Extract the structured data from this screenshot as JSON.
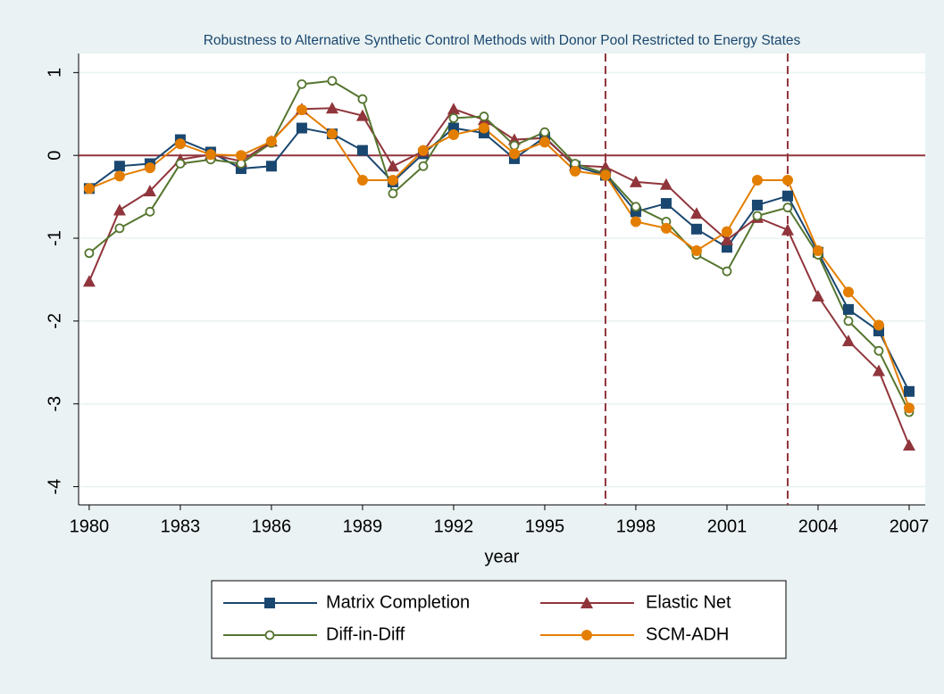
{
  "chart_data": {
    "type": "line",
    "title": "Robustness to Alternative Synthetic Control Methods with Donor Pool Restricted to Energy States",
    "x_label": "year",
    "x": [
      1980,
      1981,
      1982,
      1983,
      1984,
      1985,
      1986,
      1987,
      1988,
      1989,
      1990,
      1991,
      1992,
      1993,
      1994,
      1995,
      1996,
      1997,
      1998,
      1999,
      2000,
      2001,
      2002,
      2003,
      2004,
      2005,
      2006,
      2007
    ],
    "series": [
      {
        "name": "Matrix Completion",
        "color": "#1a476f",
        "marker": "square",
        "values": [
          -0.4,
          -0.13,
          -0.1,
          0.19,
          0.04,
          -0.16,
          -0.13,
          0.33,
          0.26,
          0.06,
          -0.32,
          0.02,
          0.33,
          0.27,
          -0.04,
          0.22,
          -0.13,
          -0.24,
          -0.68,
          -0.58,
          -0.89,
          -1.11,
          -0.6,
          -0.49,
          -1.17,
          -1.86,
          -2.12,
          -2.85
        ]
      },
      {
        "name": "Elastic Net",
        "color": "#90353b",
        "marker": "triangle",
        "values": [
          -1.52,
          -0.66,
          -0.43,
          -0.05,
          0.01,
          -0.07,
          0.17,
          0.56,
          0.57,
          0.48,
          -0.13,
          0.05,
          0.56,
          0.43,
          0.19,
          0.21,
          -0.12,
          -0.14,
          -0.32,
          -0.35,
          -0.7,
          -1.02,
          -0.75,
          -0.9,
          -1.7,
          -2.24,
          -2.6,
          -3.5
        ]
      },
      {
        "name": "Diff-in-Diff",
        "color": "#55752f",
        "marker": "hollow-circle",
        "values": [
          -1.18,
          -0.88,
          -0.68,
          -0.1,
          -0.05,
          -0.1,
          0.15,
          0.86,
          0.9,
          0.68,
          -0.46,
          -0.13,
          0.45,
          0.47,
          0.12,
          0.28,
          -0.1,
          -0.22,
          -0.62,
          -0.8,
          -1.2,
          -1.4,
          -0.73,
          -0.63,
          -1.2,
          -2.0,
          -2.36,
          -3.1
        ]
      },
      {
        "name": "SCM-ADH",
        "color": "#e37e00",
        "marker": "circle",
        "values": [
          -0.4,
          -0.25,
          -0.15,
          0.14,
          0.01,
          0.0,
          0.17,
          0.55,
          0.26,
          -0.3,
          -0.3,
          0.06,
          0.25,
          0.33,
          0.02,
          0.16,
          -0.19,
          -0.24,
          -0.8,
          -0.88,
          -1.15,
          -0.92,
          -0.3,
          -0.3,
          -1.15,
          -1.65,
          -2.05,
          -3.05
        ]
      }
    ],
    "xlim": [
      1979.65,
      2007.53
    ],
    "xticks": [
      1980,
      1983,
      1986,
      1989,
      1992,
      1995,
      1998,
      2001,
      2004,
      2007
    ],
    "ylim": [
      -4.22,
      1.23
    ],
    "yticks": [
      -4,
      -3,
      -2,
      -1,
      0,
      1
    ],
    "grid": true,
    "hline": 0,
    "vlines": [
      1997,
      2003
    ],
    "reference_color": "#90353b"
  }
}
